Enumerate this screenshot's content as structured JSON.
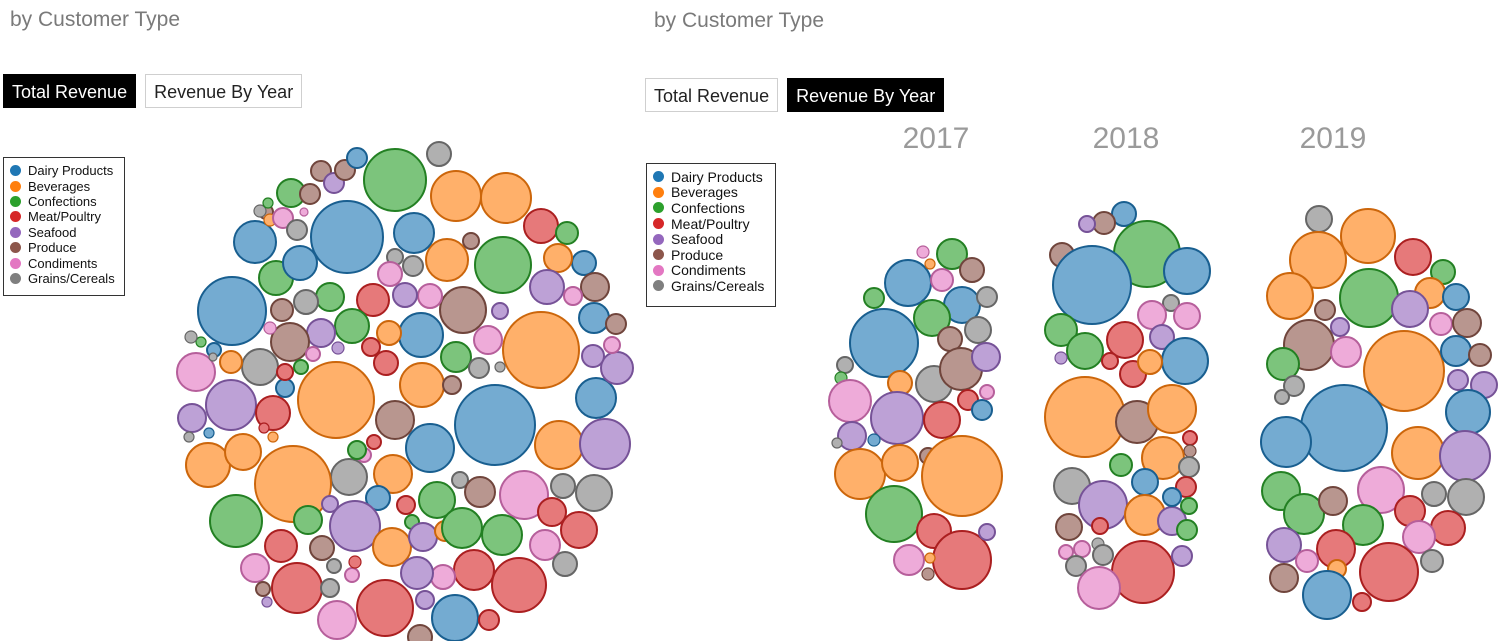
{
  "panels": [
    {
      "subtitle": "by Customer Type",
      "buttons": [
        {
          "label": "Total Revenue",
          "active": true
        },
        {
          "label": "Revenue By Year",
          "active": false
        }
      ]
    },
    {
      "subtitle": "by Customer Type",
      "buttons": [
        {
          "label": "Total Revenue",
          "active": false
        },
        {
          "label": "Revenue By Year",
          "active": true
        }
      ],
      "year_labels": [
        "2017",
        "2018",
        "2019"
      ]
    }
  ],
  "legend": [
    {
      "label": "Dairy Products",
      "color": "#1f77b4"
    },
    {
      "label": "Beverages",
      "color": "#ff7f0e"
    },
    {
      "label": "Confections",
      "color": "#2ca02c"
    },
    {
      "label": "Meat/Poultry",
      "color": "#d62728"
    },
    {
      "label": "Seafood",
      "color": "#9467bd"
    },
    {
      "label": "Produce",
      "color": "#8c564b"
    },
    {
      "label": "Condiments",
      "color": "#e377c2"
    },
    {
      "label": "Grains/Cereals",
      "color": "#7f7f7f"
    }
  ],
  "chart_data": [
    {
      "type": "bubble-pack",
      "view": "Total Revenue",
      "categories": [
        "Dairy Products",
        "Beverages",
        "Confections",
        "Meat/Poultry",
        "Seafood",
        "Produce",
        "Condiments",
        "Grains/Cereals"
      ],
      "bubble_size_scale": "relative (no values printed)",
      "bubbles_per_category_estimate": [
        18,
        20,
        22,
        20,
        17,
        14,
        16,
        17
      ]
    },
    {
      "type": "bubble-pack",
      "view": "Revenue By Year",
      "groups": [
        "2017",
        "2018",
        "2019"
      ],
      "categories": [
        "Dairy Products",
        "Beverages",
        "Confections",
        "Meat/Poultry",
        "Seafood",
        "Produce",
        "Condiments",
        "Grains/Cereals"
      ],
      "bubble_size_scale": "relative (no values printed)"
    }
  ]
}
